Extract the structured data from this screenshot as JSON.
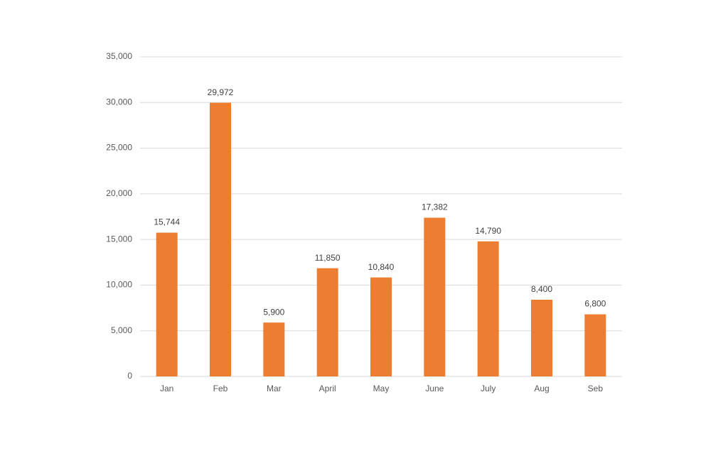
{
  "chart_data": {
    "type": "bar",
    "categories": [
      "Jan",
      "Feb",
      "Mar",
      "April",
      "May",
      "June",
      "July",
      "Aug",
      "Seb"
    ],
    "values": [
      15744,
      29972,
      5900,
      11850,
      10840,
      17382,
      14790,
      8400,
      6800
    ],
    "value_labels": [
      "15,744",
      "29,972",
      "5,900",
      "11,850",
      "10,840",
      "17,382",
      "14,790",
      "8,400",
      "6,800"
    ],
    "color": "#ed7d31",
    "ylim": [
      0,
      35000
    ],
    "yticks": [
      0,
      {
        "value": 5000,
        "label": "5,000"
      },
      {
        "value": 10000,
        "label": "10,000"
      },
      {
        "value": 15000,
        "label": "15,000"
      },
      {
        "value": 20000,
        "label": "20,000"
      },
      {
        "value": 25000,
        "label": "25,000"
      },
      {
        "value": 30000,
        "label": "30,000"
      },
      {
        "value": 35000,
        "label": "35,000"
      }
    ],
    "grid": true
  }
}
